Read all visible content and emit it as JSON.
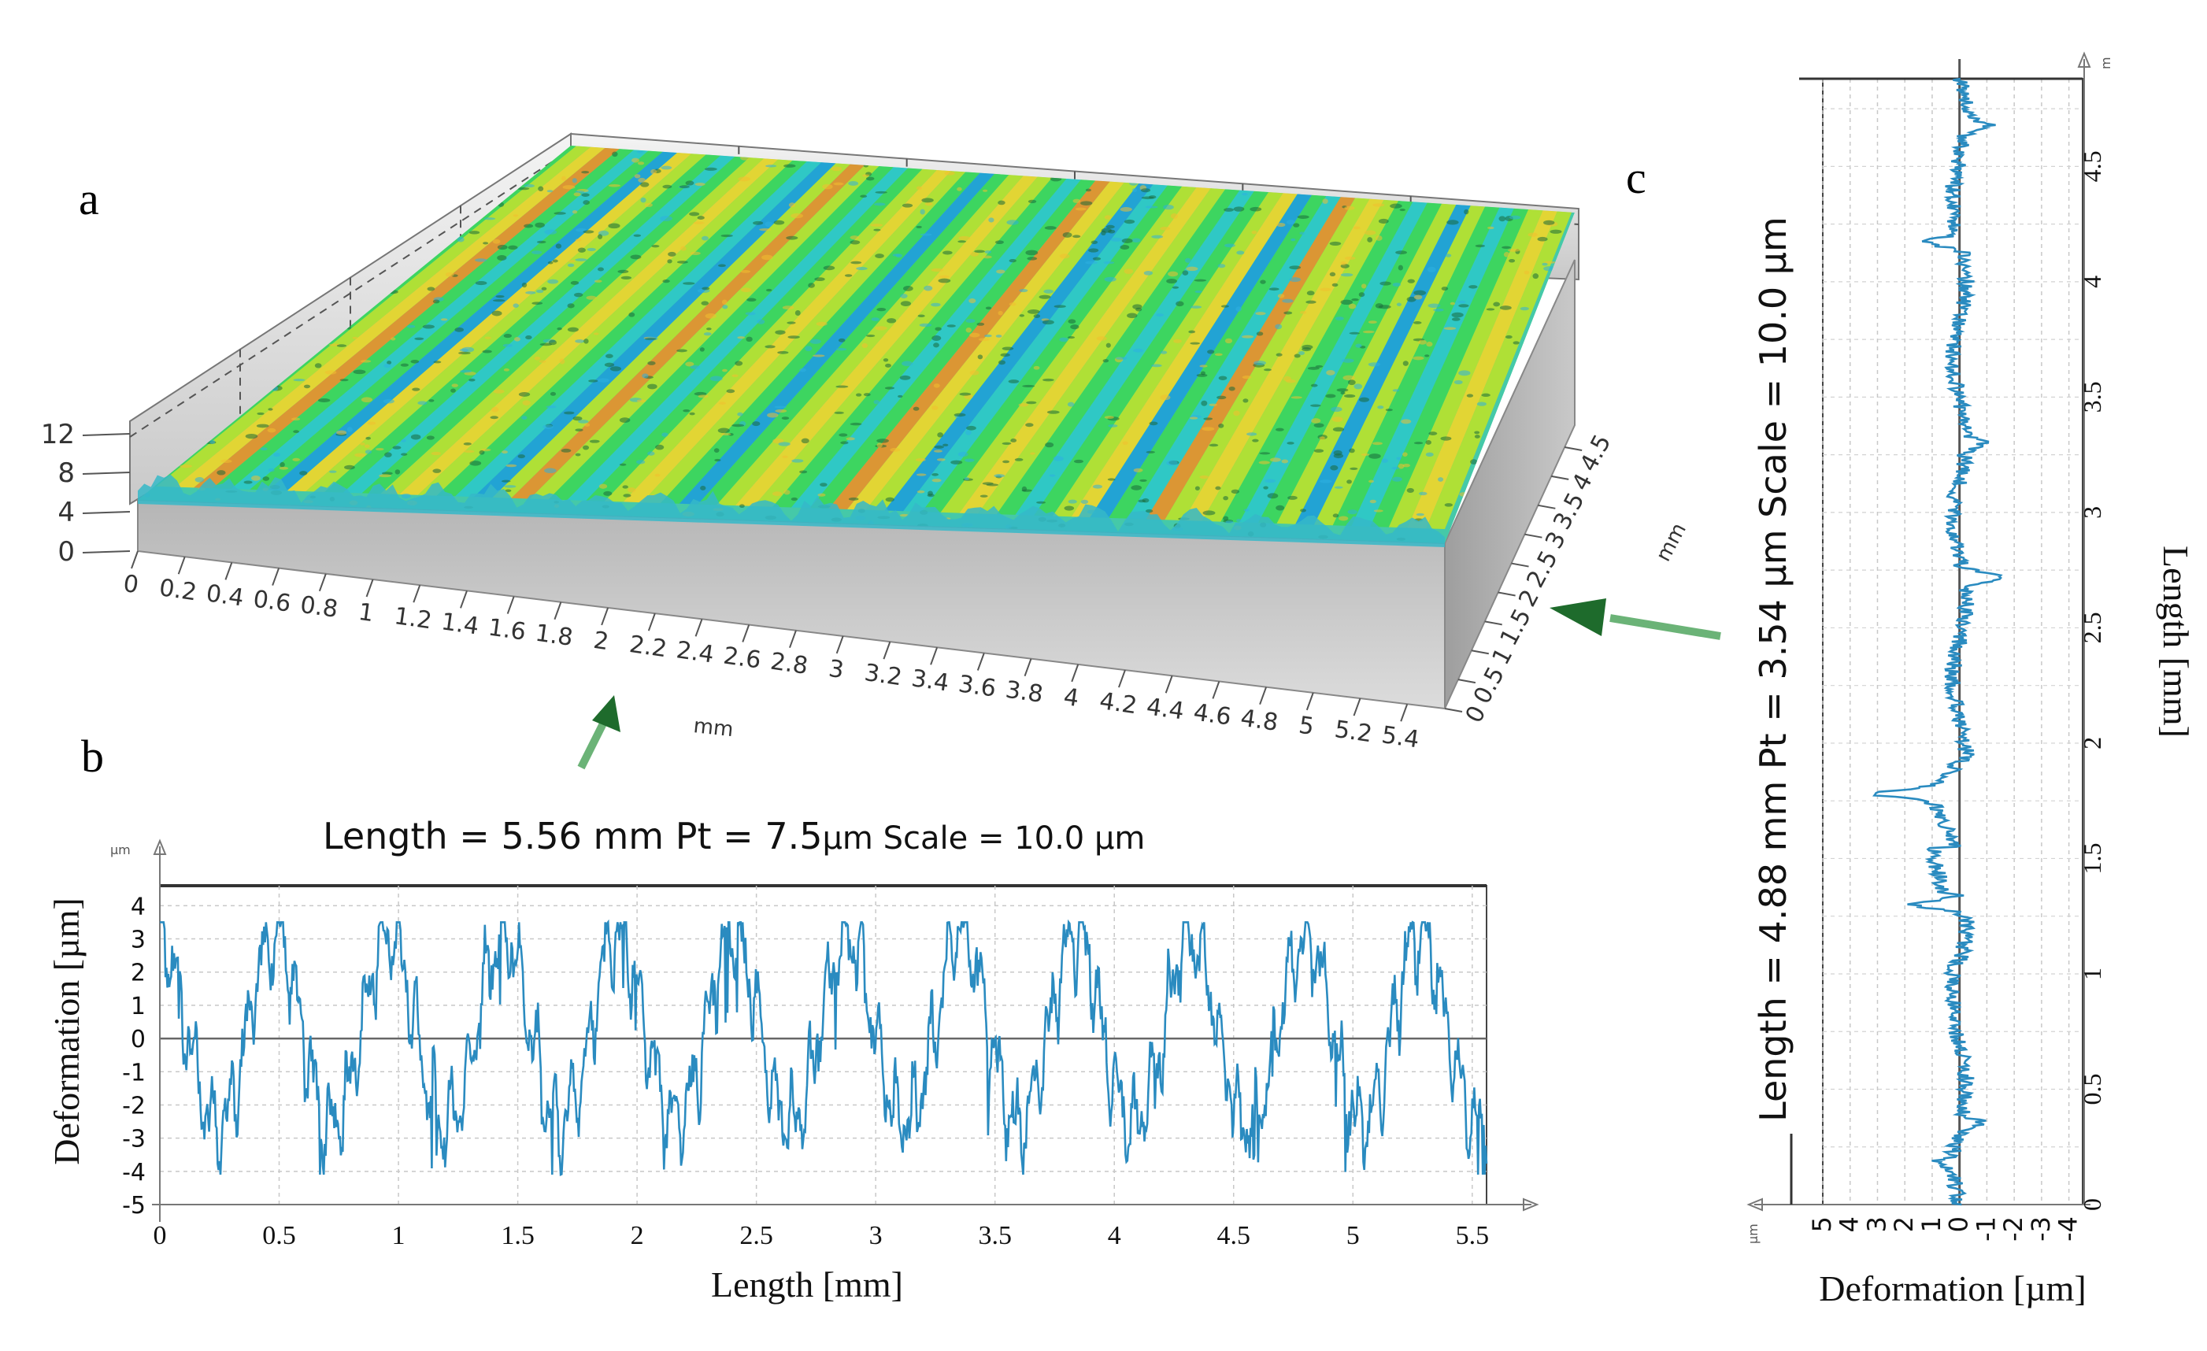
{
  "panels": {
    "a": {
      "letter": "a"
    },
    "b": {
      "letter": "b"
    },
    "c": {
      "letter": "c"
    }
  },
  "chart_data": [
    {
      "id": "a",
      "type": "surface",
      "z_axis_ticks": [
        "12",
        "8",
        "4",
        "0"
      ],
      "x_axis_unit": "mm",
      "x_axis_ticks": [
        "0",
        "0.2",
        "0.4",
        "0.6",
        "0.8",
        "1",
        "1.2",
        "1.4",
        "1.6",
        "1.8",
        "2",
        "2.2",
        "2.4",
        "2.6",
        "2.8",
        "3",
        "3.2",
        "3.4",
        "3.6",
        "3.8",
        "4",
        "4.2",
        "4.4",
        "4.6",
        "4.8",
        "5",
        "5.2",
        "5.4"
      ],
      "y_axis_unit": "mm",
      "y_axis_ticks": [
        "0",
        "0.5",
        "1",
        "1.5",
        "2",
        "2.5",
        "3",
        "3.5",
        "4",
        "4.5"
      ],
      "colormap": [
        "#1f9fd8",
        "#2ec8c8",
        "#3dd65a",
        "#b8e22c",
        "#f0d62a",
        "#e8912a"
      ],
      "ridge_count": 12,
      "ridge_direction": "parallel to y"
    },
    {
      "id": "b",
      "type": "line",
      "title": {
        "prefix": "Length = 5.56 mm Pt = ",
        "pt": "7.5",
        "unit_mid": "µm",
        "scale_prefix": " Scale = 10.0 ",
        "unit_end": "µm"
      },
      "xlabel": "Length [mm]",
      "ylabel": "Deformation  [µm]",
      "y_unit_tiny": "µm",
      "xlim": [
        0,
        5.56
      ],
      "ylim": [
        -5,
        4.6
      ],
      "x_ticks": [
        "0",
        "0.5",
        "1",
        "1.5",
        "2",
        "2.5",
        "3",
        "3.5",
        "4",
        "4.5",
        "5",
        "5.5"
      ],
      "y_ticks": [
        "4",
        "3",
        "2",
        "1",
        "0",
        "-1",
        "-2",
        "-3",
        "-4",
        "-5"
      ],
      "series": [
        {
          "color": "#2a8bc0",
          "period_mm": 0.48,
          "amplitude_pos": 3.1,
          "amplitude_neg": 3.2,
          "min": -4.1,
          "max": 3.5
        }
      ],
      "zero_line": true
    },
    {
      "id": "c",
      "type": "line",
      "orientation": "vertical",
      "title": "Length = 4.88 mm  Pt = 3.54 µm Scale = 10.0 µm",
      "xlabel": "Deformation  [µm]",
      "ylabel": "Length [mm]",
      "x_unit_tiny": "µm",
      "y_unit_tiny": "m",
      "xlim": [
        5,
        -4.5
      ],
      "ylim": [
        0,
        4.88
      ],
      "x_ticks": [
        "5",
        "4",
        "3",
        "2",
        "1",
        "0",
        "-1",
        "-2",
        "-3",
        "-4"
      ],
      "y_ticks": [
        "0",
        "0.5",
        "1",
        "1.5",
        "2",
        "2.5",
        "3",
        "3.5",
        "4",
        "4.5"
      ],
      "spikes": [
        {
          "y": 0.18,
          "x": 0.6
        },
        {
          "y": 0.35,
          "x": -0.9
        },
        {
          "y": 1.02,
          "x": 0.3
        },
        {
          "y": 1.3,
          "x": 1.9
        },
        {
          "y": 1.78,
          "x": 2.2
        },
        {
          "y": 2.72,
          "x": -1.5
        },
        {
          "y": 3.3,
          "x": -0.6
        },
        {
          "y": 4.17,
          "x": 1.3
        },
        {
          "y": 4.68,
          "x": -0.8
        }
      ],
      "series": [
        {
          "color": "#2a8bc0"
        }
      ],
      "zero_line": true
    }
  ]
}
